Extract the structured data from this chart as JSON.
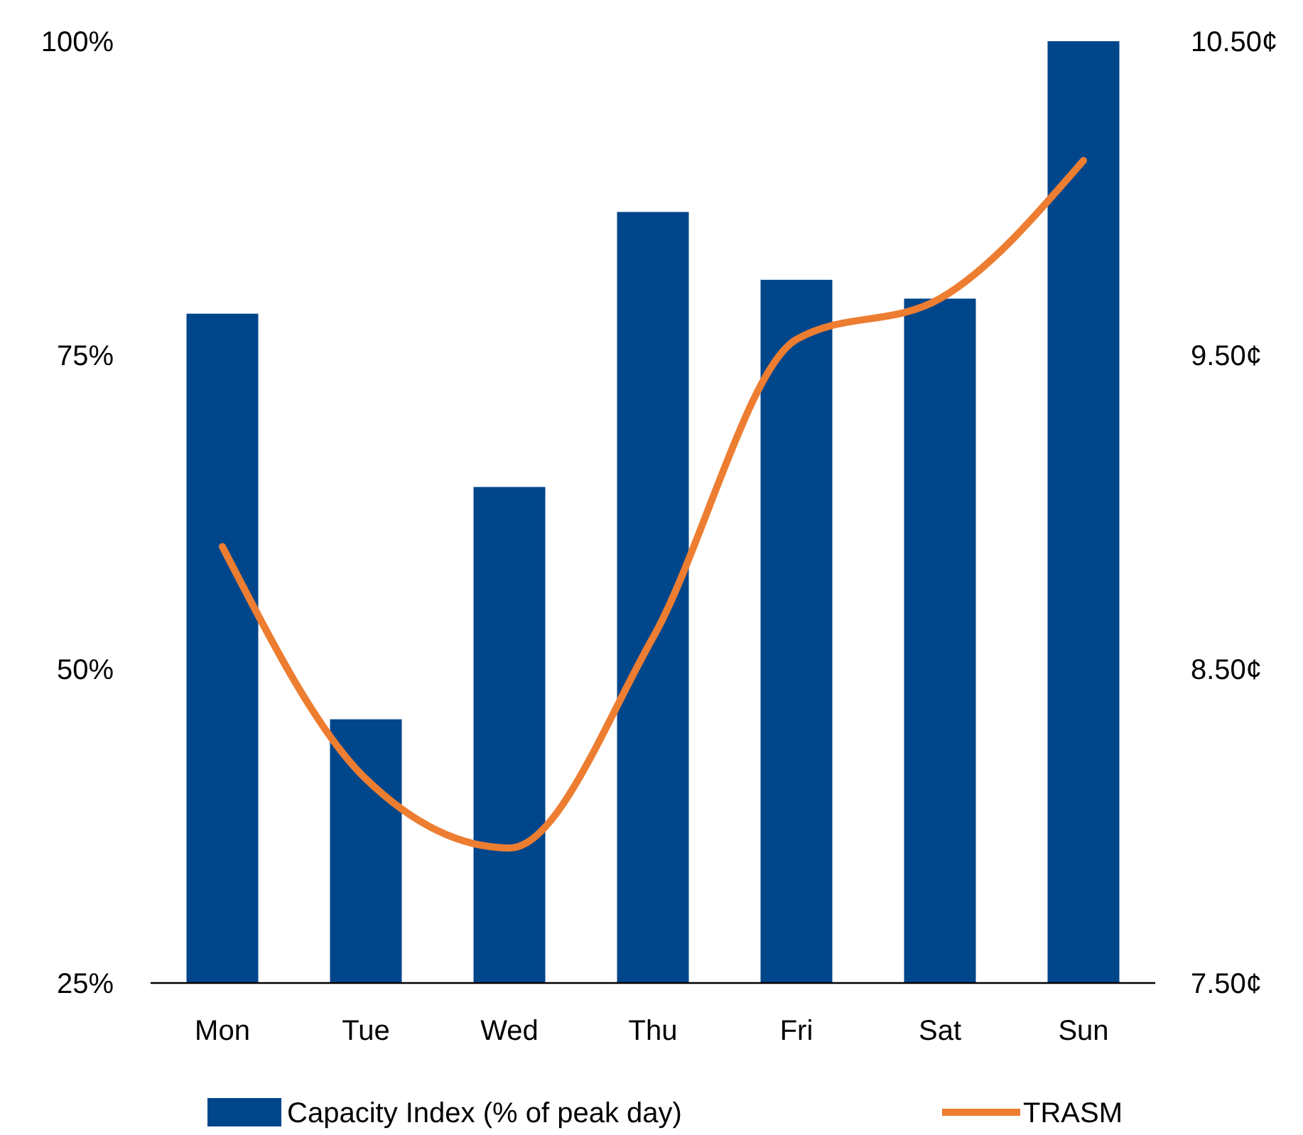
{
  "chart_data": {
    "type": "bar",
    "categories": [
      "Mon",
      "Tue",
      "Wed",
      "Thu",
      "Fri",
      "Sat",
      "Sun"
    ],
    "series": [
      {
        "name": "Capacity Index (% of peak day)",
        "color": "#00468b",
        "values": [
          78.3,
          46,
          64.5,
          86.4,
          81,
          79.5,
          100
        ]
      },
      {
        "name": "TRASM",
        "type": "line",
        "axis": "y2",
        "color": "#ed7d31",
        "values": [
          8.89,
          8.15,
          7.93,
          8.6,
          9.55,
          9.68,
          10.12
        ]
      }
    ],
    "ylim": [
      25,
      100
    ],
    "yticks": [
      {
        "value": 25,
        "label": "25%"
      },
      {
        "value": 50,
        "label": "50%"
      },
      {
        "value": 75,
        "label": "75%"
      },
      {
        "value": 100,
        "label": "100%"
      }
    ],
    "y2lim": [
      7.5,
      10.5
    ],
    "y2ticks": [
      {
        "value": 7.5,
        "label": "7.50¢"
      },
      {
        "value": 8.5,
        "label": "8.50¢"
      },
      {
        "value": 9.5,
        "label": "9.50¢"
      },
      {
        "value": 10.5,
        "label": "10.50¢"
      }
    ],
    "grid": false,
    "legend": "bottom",
    "marker": "none",
    "line_style": "solid"
  }
}
